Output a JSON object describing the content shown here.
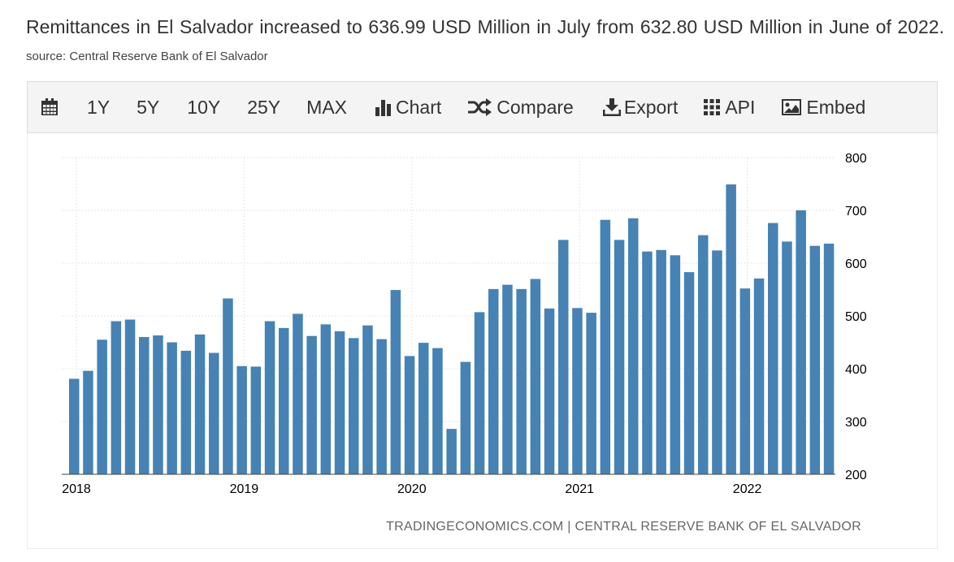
{
  "headline": {
    "text": "Remittances in El Salvador increased to 636.99 USD Million in July from 632.80 USD Million in June of 2022.",
    "source": "source: Central Reserve Bank of El Salvador"
  },
  "toolbar": {
    "calendar_icon": "calendar-icon",
    "range_1y": "1Y",
    "range_5y": "5Y",
    "range_10y": "10Y",
    "range_25y": "25Y",
    "range_max": "MAX",
    "chart_label": "Chart",
    "compare_label": "Compare",
    "export_label": "Export",
    "api_label": "API",
    "embed_label": "Embed"
  },
  "credit": "TRADINGECONOMICS.COM | CENTRAL RESERVE BANK OF EL SALVADOR",
  "chart_data": {
    "type": "bar",
    "title": "",
    "xlabel": "",
    "ylabel": "",
    "color": "#4682b4",
    "ylim": [
      200,
      800
    ],
    "yticks": [
      200,
      300,
      400,
      500,
      600,
      700,
      800
    ],
    "xticks": [
      "2018",
      "2019",
      "2020",
      "2021",
      "2022"
    ],
    "grid": true,
    "axis_position": "right",
    "categories": [
      "2018-01",
      "2018-02",
      "2018-03",
      "2018-04",
      "2018-05",
      "2018-06",
      "2018-07",
      "2018-08",
      "2018-09",
      "2018-10",
      "2018-11",
      "2018-12",
      "2019-01",
      "2019-02",
      "2019-03",
      "2019-04",
      "2019-05",
      "2019-06",
      "2019-07",
      "2019-08",
      "2019-09",
      "2019-10",
      "2019-11",
      "2019-12",
      "2020-01",
      "2020-02",
      "2020-03",
      "2020-04",
      "2020-05",
      "2020-06",
      "2020-07",
      "2020-08",
      "2020-09",
      "2020-10",
      "2020-11",
      "2020-12",
      "2021-01",
      "2021-02",
      "2021-03",
      "2021-04",
      "2021-05",
      "2021-06",
      "2021-07",
      "2021-08",
      "2021-09",
      "2021-10",
      "2021-11",
      "2021-12",
      "2022-01",
      "2022-02",
      "2022-03",
      "2022-04",
      "2022-05",
      "2022-06",
      "2022-07"
    ],
    "values": [
      381,
      396,
      455,
      490,
      493,
      460,
      463,
      450,
      434,
      465,
      430,
      533,
      405,
      404,
      490,
      477,
      504,
      462,
      484,
      471,
      458,
      482,
      456,
      549,
      424,
      449,
      439,
      286,
      413,
      507,
      551,
      559,
      551,
      570,
      514,
      644,
      515,
      506,
      682,
      644,
      685,
      622,
      625,
      615,
      583,
      653,
      624,
      749,
      552,
      571,
      676,
      641,
      700,
      632.8,
      636.99
    ]
  }
}
